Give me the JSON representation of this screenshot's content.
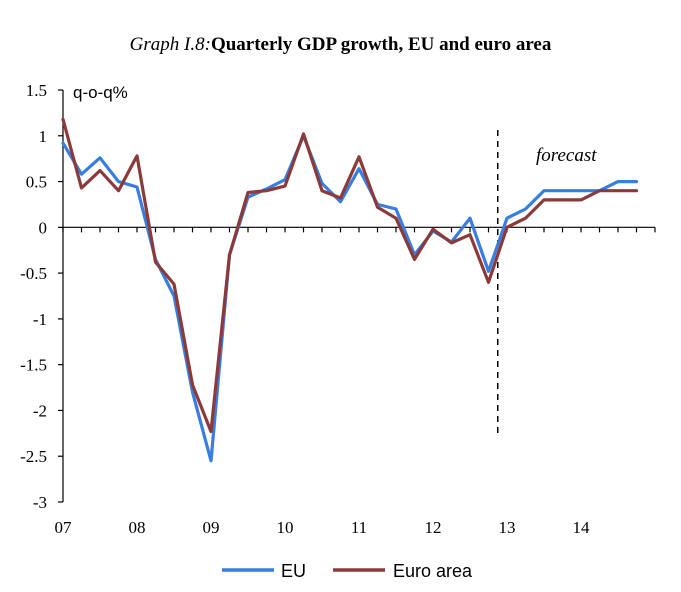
{
  "chart_data": {
    "type": "line",
    "title_prefix": "Graph I.8:",
    "title": "Quarterly GDP growth, EU and euro area",
    "unit_label": "q-o-q%",
    "ylim": [
      -3,
      1.5
    ],
    "y_ticks": [
      "1.5",
      "1",
      "0.5",
      "0",
      "-0.5",
      "-1",
      "-1.5",
      "-2",
      "-2.5",
      "-3"
    ],
    "x_range": [
      2007.0,
      2015.0
    ],
    "x_tick_labels": [
      "07",
      "08",
      "09",
      "10",
      "11",
      "12",
      "13",
      "14"
    ],
    "forecast_start": 2012.875,
    "forecast_label": "forecast",
    "legend_position": "bottom",
    "x": [
      2007.0,
      2007.25,
      2007.5,
      2007.75,
      2008.0,
      2008.25,
      2008.5,
      2008.75,
      2009.0,
      2009.25,
      2009.5,
      2009.75,
      2010.0,
      2010.25,
      2010.5,
      2010.75,
      2011.0,
      2011.25,
      2011.5,
      2011.75,
      2012.0,
      2012.25,
      2012.5,
      2012.75,
      2013.0,
      2013.25,
      2013.5,
      2013.75,
      2014.0,
      2014.25,
      2014.5,
      2014.75
    ],
    "series": [
      {
        "name": "EU",
        "color": "#3a7de0",
        "values": [
          0.92,
          0.58,
          0.76,
          0.5,
          0.44,
          -0.35,
          -0.75,
          -1.8,
          -2.55,
          -0.3,
          0.33,
          0.42,
          0.52,
          1.0,
          0.48,
          0.28,
          0.64,
          0.25,
          0.2,
          -0.3,
          -0.04,
          -0.16,
          0.1,
          -0.48,
          0.1,
          0.2,
          0.4,
          0.4,
          0.4,
          0.4,
          0.5,
          0.5
        ]
      },
      {
        "name": "Euro area",
        "color": "#8b3a3a",
        "values": [
          1.18,
          0.43,
          0.62,
          0.4,
          0.78,
          -0.38,
          -0.62,
          -1.72,
          -2.23,
          -0.3,
          0.38,
          0.4,
          0.45,
          1.02,
          0.4,
          0.32,
          0.77,
          0.22,
          0.1,
          -0.35,
          -0.02,
          -0.17,
          -0.08,
          -0.6,
          0.0,
          0.1,
          0.3,
          0.3,
          0.3,
          0.4,
          0.4,
          0.4
        ]
      }
    ]
  }
}
